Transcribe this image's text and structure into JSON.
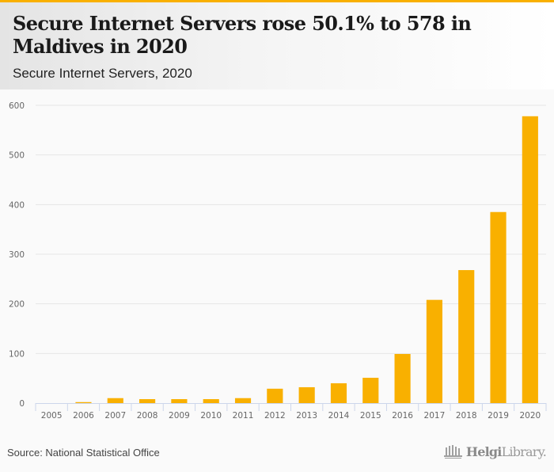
{
  "header": {
    "title": "Secure Internet Servers rose 50.1% to 578 in Maldives in 2020",
    "subtitle": "Secure Internet Servers, 2020"
  },
  "footer": {
    "source": "Source: National Statistical Office",
    "logo_bold": "Helgi",
    "logo_light": "Library.",
    "logo_icon": "library-building-icon"
  },
  "colors": {
    "bar": "#f9b000",
    "accent": "#f9b000",
    "grid": "#e6e6e6",
    "axis": "#ccd6eb"
  },
  "chart_data": {
    "type": "bar",
    "title": "Secure Internet Servers rose 50.1% to 578 in Maldives in 2020",
    "subtitle": "Secure Internet Servers, 2020",
    "xlabel": "",
    "ylabel": "",
    "categories": [
      "2005",
      "2006",
      "2007",
      "2008",
      "2009",
      "2010",
      "2011",
      "2012",
      "2013",
      "2014",
      "2015",
      "2016",
      "2017",
      "2018",
      "2019",
      "2020"
    ],
    "values": [
      0,
      2,
      10,
      8,
      8,
      8,
      10,
      29,
      32,
      40,
      51,
      99,
      208,
      268,
      385,
      578
    ],
    "ylim": [
      0,
      600
    ],
    "yticks": [
      0,
      100,
      200,
      300,
      400,
      500,
      600
    ],
    "grid": true,
    "legend": "none"
  }
}
